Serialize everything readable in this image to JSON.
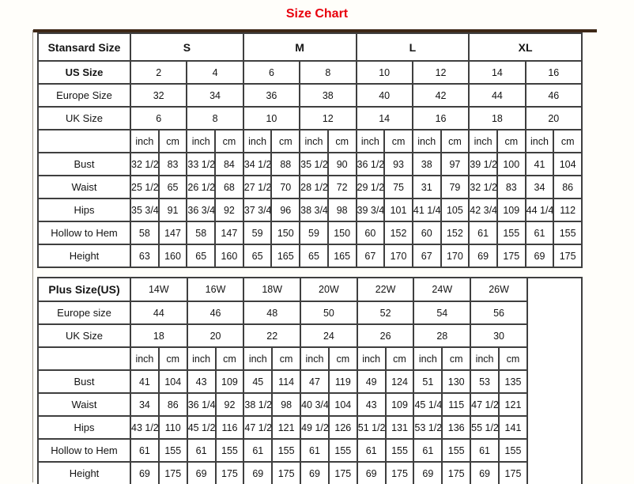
{
  "title": "Size Chart",
  "colors": {
    "title_red": "#e8000d",
    "table_border": "#3f3f3f",
    "top_rule_brown": "#3e2817",
    "background": "#fffefa"
  },
  "standard_table": {
    "label_header": "Stansard Size",
    "size_groups": [
      "S",
      "M",
      "L",
      "XL"
    ],
    "head_rows": [
      {
        "label": "US Size",
        "bold": true,
        "values": [
          "2",
          "4",
          "6",
          "8",
          "10",
          "12",
          "14",
          "16"
        ]
      },
      {
        "label": "Europe Size",
        "values": [
          "32",
          "34",
          "36",
          "38",
          "40",
          "42",
          "44",
          "46"
        ]
      },
      {
        "label": "UK Size",
        "values": [
          "6",
          "8",
          "10",
          "12",
          "14",
          "16",
          "18",
          "20"
        ]
      }
    ],
    "unit_labels": [
      "inch",
      "cm"
    ],
    "measure_rows": [
      {
        "label": "Bust",
        "values": [
          "32 1/2",
          "83",
          "33 1/2",
          "84",
          "34 1/2",
          "88",
          "35 1/2",
          "90",
          "36 1/2",
          "93",
          "38",
          "97",
          "39 1/2",
          "100",
          "41",
          "104"
        ]
      },
      {
        "label": "Waist",
        "values": [
          "25 1/2",
          "65",
          "26 1/2",
          "68",
          "27 1/2",
          "70",
          "28 1/2",
          "72",
          "29 1/2",
          "75",
          "31",
          "79",
          "32 1/2",
          "83",
          "34",
          "86"
        ]
      },
      {
        "label": "Hips",
        "values": [
          "35 3/4",
          "91",
          "36 3/4",
          "92",
          "37 3/4",
          "96",
          "38 3/4",
          "98",
          "39 3/4",
          "101",
          "41 1/4",
          "105",
          "42 3/4",
          "109",
          "44 1/4",
          "112"
        ]
      },
      {
        "label": "Hollow to Hem",
        "values": [
          "58",
          "147",
          "58",
          "147",
          "59",
          "150",
          "59",
          "150",
          "60",
          "152",
          "60",
          "152",
          "61",
          "155",
          "61",
          "155"
        ]
      },
      {
        "label": "Height",
        "values": [
          "63",
          "160",
          "65",
          "160",
          "65",
          "165",
          "65",
          "165",
          "67",
          "170",
          "67",
          "170",
          "69",
          "175",
          "69",
          "175"
        ]
      }
    ]
  },
  "plus_table": {
    "label_header": "Plus Size(US)",
    "size_groups": [
      "14W",
      "16W",
      "18W",
      "20W",
      "22W",
      "24W",
      "26W"
    ],
    "trailing_empty_column": true,
    "head_rows": [
      {
        "label": "Europe size",
        "values": [
          "44",
          "46",
          "48",
          "50",
          "52",
          "54",
          "56"
        ]
      },
      {
        "label": "UK Size",
        "values": [
          "18",
          "20",
          "22",
          "24",
          "26",
          "28",
          "30"
        ]
      }
    ],
    "unit_labels": [
      "inch",
      "cm"
    ],
    "measure_rows": [
      {
        "label": "Bust",
        "values": [
          "41",
          "104",
          "43",
          "109",
          "45",
          "114",
          "47",
          "119",
          "49",
          "124",
          "51",
          "130",
          "53",
          "135"
        ]
      },
      {
        "label": "Waist",
        "values": [
          "34",
          "86",
          "36 1/4",
          "92",
          "38 1/2",
          "98",
          "40 3/4",
          "104",
          "43",
          "109",
          "45 1/4",
          "115",
          "47 1/2",
          "121"
        ]
      },
      {
        "label": "Hips",
        "values": [
          "43 1/2",
          "110",
          "45 1/2",
          "116",
          "47 1/2",
          "121",
          "49 1/2",
          "126",
          "51 1/2",
          "131",
          "53 1/2",
          "136",
          "55 1/2",
          "141"
        ]
      },
      {
        "label": "Hollow to Hem",
        "values": [
          "61",
          "155",
          "61",
          "155",
          "61",
          "155",
          "61",
          "155",
          "61",
          "155",
          "61",
          "155",
          "61",
          "155"
        ]
      },
      {
        "label": "Height",
        "values": [
          "69",
          "175",
          "69",
          "175",
          "69",
          "175",
          "69",
          "175",
          "69",
          "175",
          "69",
          "175",
          "69",
          "175"
        ]
      }
    ]
  }
}
